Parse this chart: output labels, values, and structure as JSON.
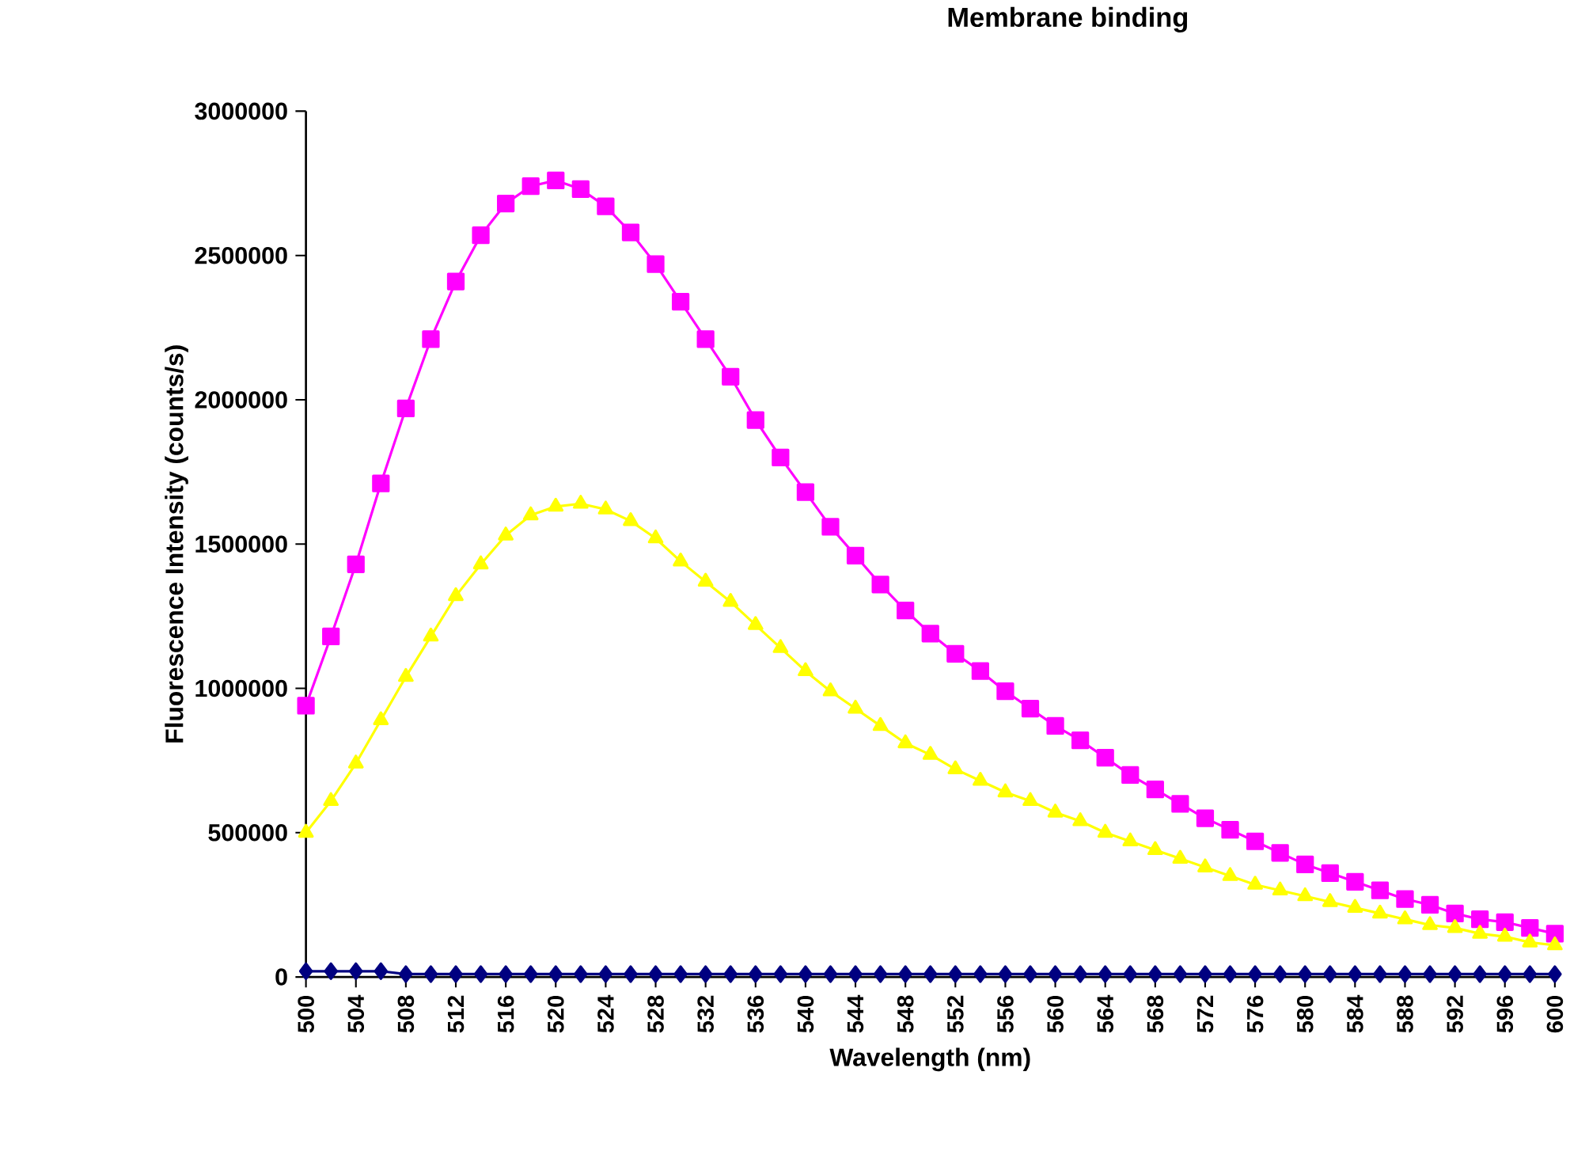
{
  "chart_data": {
    "type": "line",
    "title": "Membrane binding",
    "xlabel": "Wavelength (nm)",
    "ylabel": "Fluorescence Intensity (counts/s)",
    "x": [
      500,
      502,
      504,
      506,
      508,
      510,
      512,
      514,
      516,
      518,
      520,
      522,
      524,
      526,
      528,
      530,
      532,
      534,
      536,
      538,
      540,
      542,
      544,
      546,
      548,
      550,
      552,
      554,
      556,
      558,
      560,
      562,
      564,
      566,
      568,
      570,
      572,
      574,
      576,
      578,
      580,
      582,
      584,
      586,
      588,
      590,
      592,
      594,
      596,
      598,
      600
    ],
    "series": [
      {
        "color": "#ff00ff",
        "marker": "square",
        "values": [
          940000,
          1180000,
          1430000,
          1710000,
          1970000,
          2210000,
          2410000,
          2570000,
          2680000,
          2740000,
          2760000,
          2730000,
          2670000,
          2580000,
          2470000,
          2340000,
          2210000,
          2080000,
          1930000,
          1800000,
          1680000,
          1560000,
          1460000,
          1360000,
          1270000,
          1190000,
          1120000,
          1060000,
          990000,
          930000,
          870000,
          820000,
          760000,
          700000,
          650000,
          600000,
          550000,
          510000,
          470000,
          430000,
          390000,
          360000,
          330000,
          300000,
          270000,
          250000,
          220000,
          200000,
          190000,
          170000,
          150000
        ]
      },
      {
        "color": "#ffff00",
        "marker": "triangle",
        "values": [
          500000,
          610000,
          740000,
          890000,
          1040000,
          1180000,
          1320000,
          1430000,
          1530000,
          1600000,
          1630000,
          1640000,
          1620000,
          1580000,
          1520000,
          1440000,
          1370000,
          1300000,
          1220000,
          1140000,
          1060000,
          990000,
          930000,
          870000,
          810000,
          770000,
          720000,
          680000,
          640000,
          610000,
          570000,
          540000,
          500000,
          470000,
          440000,
          410000,
          380000,
          350000,
          320000,
          300000,
          280000,
          260000,
          240000,
          220000,
          200000,
          180000,
          170000,
          150000,
          140000,
          120000,
          110000
        ]
      },
      {
        "color": "#000080",
        "marker": "diamond",
        "values": [
          20000,
          20000,
          20000,
          20000,
          10000,
          10000,
          10000,
          10000,
          10000,
          10000,
          10000,
          10000,
          10000,
          10000,
          10000,
          10000,
          10000,
          10000,
          10000,
          10000,
          10000,
          10000,
          10000,
          10000,
          10000,
          10000,
          10000,
          10000,
          10000,
          10000,
          10000,
          10000,
          10000,
          10000,
          10000,
          10000,
          10000,
          10000,
          10000,
          10000,
          10000,
          10000,
          10000,
          10000,
          10000,
          10000,
          10000,
          10000,
          10000,
          10000,
          10000
        ]
      }
    ],
    "xlim": [
      500,
      600
    ],
    "xticks": [
      500,
      504,
      508,
      512,
      516,
      520,
      524,
      528,
      532,
      536,
      540,
      544,
      548,
      552,
      556,
      560,
      564,
      568,
      572,
      576,
      580,
      584,
      588,
      592,
      596,
      600
    ],
    "ylim": [
      0,
      3000000
    ],
    "yticks": [
      0,
      500000,
      1000000,
      1500000,
      2000000,
      2500000,
      3000000
    ],
    "grid": false,
    "line_style": "solid"
  }
}
